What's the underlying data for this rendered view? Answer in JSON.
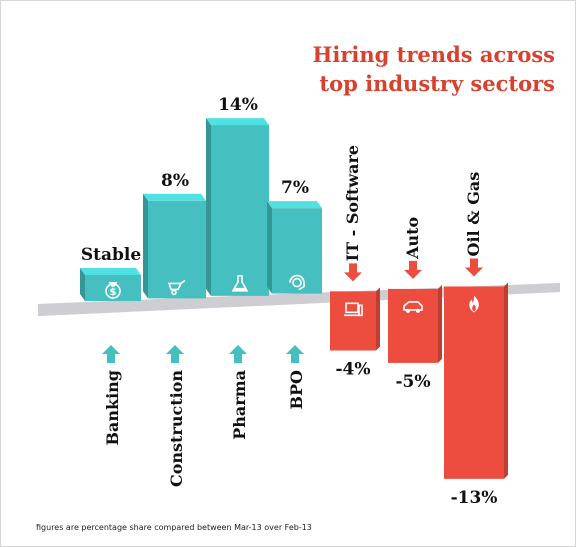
{
  "title_line1": "Hiring trends across",
  "title_line2": "top industry sectors",
  "footnote": "figures are percentage share compared between  Mar-13 over Feb-13",
  "colors": {
    "positive": "#45bfc0",
    "negative": "#ec4d3f",
    "title": "#d9412f",
    "platform": "#cfcfd3"
  },
  "chart_data": {
    "type": "bar",
    "title": "Hiring trends across top industry sectors",
    "unit": "%",
    "categories": [
      "Banking",
      "Construction",
      "Pharma",
      "BPO",
      "IT - Software",
      "Auto",
      "Oil & Gas"
    ],
    "values": [
      0,
      8,
      14,
      7,
      -4,
      -5,
      -13
    ],
    "value_labels": [
      "Stable",
      "8%",
      "14%",
      "7%",
      "-4%",
      "-5%",
      "-13%"
    ],
    "icons": [
      "money-bag-icon",
      "wheelbarrow-icon",
      "flask-icon",
      "headset-icon",
      "computer-icon",
      "car-icon",
      "flame-icon"
    ]
  }
}
